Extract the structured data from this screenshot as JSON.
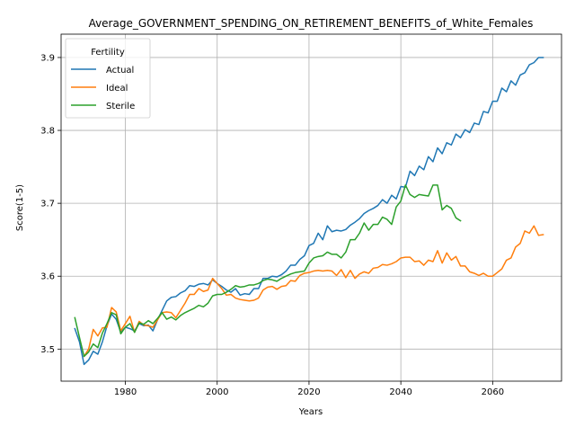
{
  "chart_data": {
    "type": "line",
    "title": "Average_GOVERNMENT_SPENDING_ON_RETIREMENT_BENEFITS_of_White_Females",
    "xlabel": "Years",
    "ylabel": "Score(1-5)",
    "xlim": [
      1966,
      2075
    ],
    "ylim": [
      3.456,
      3.932
    ],
    "x_ticks": [
      1980,
      2000,
      2020,
      2040,
      2060
    ],
    "y_ticks": [
      3.5,
      3.6,
      3.7,
      3.8,
      3.9
    ],
    "grid": true,
    "legend": {
      "title": "Fertility",
      "placement": "top-left"
    },
    "series": [
      {
        "name": "Actual",
        "color": "#1f77b4",
        "points": [
          [
            1969,
            3.528
          ],
          [
            1970,
            3.51
          ],
          [
            1971,
            3.479
          ],
          [
            1972,
            3.485
          ],
          [
            1973,
            3.497
          ],
          [
            1974,
            3.493
          ],
          [
            1975,
            3.51
          ],
          [
            1976,
            3.532
          ],
          [
            1977,
            3.548
          ],
          [
            1978,
            3.541
          ],
          [
            1979,
            3.523
          ],
          [
            1980,
            3.53
          ],
          [
            1981,
            3.528
          ],
          [
            1982,
            3.525
          ],
          [
            1983,
            3.535
          ],
          [
            1984,
            3.532
          ],
          [
            1985,
            3.533
          ],
          [
            1986,
            3.525
          ],
          [
            1987,
            3.54
          ],
          [
            1988,
            3.553
          ],
          [
            1989,
            3.566
          ],
          [
            1990,
            3.571
          ],
          [
            1991,
            3.572
          ],
          [
            1992,
            3.577
          ],
          [
            1993,
            3.58
          ],
          [
            1994,
            3.587
          ],
          [
            1995,
            3.586
          ],
          [
            1996,
            3.589
          ],
          [
            1997,
            3.59
          ],
          [
            1998,
            3.588
          ],
          [
            1999,
            3.595
          ],
          [
            2000,
            3.59
          ],
          [
            2001,
            3.586
          ],
          [
            2002,
            3.581
          ],
          [
            2003,
            3.578
          ],
          [
            2004,
            3.583
          ],
          [
            2005,
            3.574
          ],
          [
            2006,
            3.576
          ],
          [
            2007,
            3.575
          ],
          [
            2008,
            3.583
          ],
          [
            2009,
            3.583
          ],
          [
            2010,
            3.597
          ],
          [
            2011,
            3.597
          ],
          [
            2012,
            3.6
          ],
          [
            2013,
            3.599
          ],
          [
            2014,
            3.602
          ],
          [
            2015,
            3.607
          ],
          [
            2016,
            3.615
          ],
          [
            2017,
            3.615
          ],
          [
            2018,
            3.623
          ],
          [
            2019,
            3.628
          ],
          [
            2020,
            3.642
          ],
          [
            2021,
            3.645
          ],
          [
            2022,
            3.659
          ],
          [
            2023,
            3.65
          ],
          [
            2024,
            3.669
          ],
          [
            2025,
            3.661
          ],
          [
            2026,
            3.663
          ],
          [
            2027,
            3.662
          ],
          [
            2028,
            3.664
          ],
          [
            2029,
            3.67
          ],
          [
            2030,
            3.674
          ],
          [
            2031,
            3.679
          ],
          [
            2032,
            3.686
          ],
          [
            2033,
            3.69
          ],
          [
            2034,
            3.693
          ],
          [
            2035,
            3.697
          ],
          [
            2036,
            3.705
          ],
          [
            2037,
            3.7
          ],
          [
            2038,
            3.711
          ],
          [
            2039,
            3.706
          ],
          [
            2040,
            3.723
          ],
          [
            2041,
            3.722
          ],
          [
            2042,
            3.744
          ],
          [
            2043,
            3.738
          ],
          [
            2044,
            3.751
          ],
          [
            2045,
            3.746
          ],
          [
            2046,
            3.764
          ],
          [
            2047,
            3.757
          ],
          [
            2048,
            3.776
          ],
          [
            2049,
            3.768
          ],
          [
            2050,
            3.783
          ],
          [
            2051,
            3.78
          ],
          [
            2052,
            3.795
          ],
          [
            2053,
            3.79
          ],
          [
            2054,
            3.801
          ],
          [
            2055,
            3.797
          ],
          [
            2056,
            3.81
          ],
          [
            2057,
            3.808
          ],
          [
            2058,
            3.826
          ],
          [
            2059,
            3.824
          ],
          [
            2060,
            3.84
          ],
          [
            2061,
            3.84
          ],
          [
            2062,
            3.858
          ],
          [
            2063,
            3.853
          ],
          [
            2064,
            3.868
          ],
          [
            2065,
            3.862
          ],
          [
            2066,
            3.876
          ],
          [
            2067,
            3.879
          ],
          [
            2068,
            3.89
          ],
          [
            2069,
            3.893
          ],
          [
            2070,
            3.9
          ],
          [
            2071,
            3.9
          ]
        ]
      },
      {
        "name": "Ideal",
        "color": "#ff7f0e",
        "points": [
          [
            1971,
            3.49
          ],
          [
            1972,
            3.5
          ],
          [
            1973,
            3.527
          ],
          [
            1974,
            3.518
          ],
          [
            1975,
            3.529
          ],
          [
            1976,
            3.53
          ],
          [
            1977,
            3.557
          ],
          [
            1978,
            3.551
          ],
          [
            1979,
            3.525
          ],
          [
            1980,
            3.535
          ],
          [
            1981,
            3.545
          ],
          [
            1982,
            3.523
          ],
          [
            1983,
            3.538
          ],
          [
            1984,
            3.533
          ],
          [
            1985,
            3.532
          ],
          [
            1986,
            3.53
          ],
          [
            1987,
            3.54
          ],
          [
            1988,
            3.55
          ],
          [
            1989,
            3.551
          ],
          [
            1990,
            3.55
          ],
          [
            1991,
            3.543
          ],
          [
            1992,
            3.553
          ],
          [
            1993,
            3.563
          ],
          [
            1994,
            3.575
          ],
          [
            1995,
            3.575
          ],
          [
            1996,
            3.583
          ],
          [
            1997,
            3.579
          ],
          [
            1998,
            3.581
          ],
          [
            1999,
            3.597
          ],
          [
            2000,
            3.59
          ],
          [
            2001,
            3.583
          ],
          [
            2002,
            3.574
          ],
          [
            2003,
            3.575
          ],
          [
            2004,
            3.57
          ],
          [
            2005,
            3.568
          ],
          [
            2006,
            3.567
          ],
          [
            2007,
            3.566
          ],
          [
            2008,
            3.567
          ],
          [
            2009,
            3.57
          ],
          [
            2010,
            3.581
          ],
          [
            2011,
            3.585
          ],
          [
            2012,
            3.586
          ],
          [
            2013,
            3.582
          ],
          [
            2014,
            3.586
          ],
          [
            2015,
            3.587
          ],
          [
            2016,
            3.594
          ],
          [
            2017,
            3.593
          ],
          [
            2018,
            3.601
          ],
          [
            2019,
            3.604
          ],
          [
            2020,
            3.605
          ],
          [
            2021,
            3.607
          ],
          [
            2022,
            3.608
          ],
          [
            2023,
            3.607
          ],
          [
            2024,
            3.608
          ],
          [
            2025,
            3.607
          ],
          [
            2026,
            3.601
          ],
          [
            2027,
            3.609
          ],
          [
            2028,
            3.598
          ],
          [
            2029,
            3.608
          ],
          [
            2030,
            3.597
          ],
          [
            2031,
            3.603
          ],
          [
            2032,
            3.606
          ],
          [
            2033,
            3.604
          ],
          [
            2034,
            3.611
          ],
          [
            2035,
            3.612
          ],
          [
            2036,
            3.616
          ],
          [
            2037,
            3.615
          ],
          [
            2038,
            3.617
          ],
          [
            2039,
            3.62
          ],
          [
            2040,
            3.625
          ],
          [
            2041,
            3.626
          ],
          [
            2042,
            3.626
          ],
          [
            2043,
            3.62
          ],
          [
            2044,
            3.621
          ],
          [
            2045,
            3.615
          ],
          [
            2046,
            3.622
          ],
          [
            2047,
            3.62
          ],
          [
            2048,
            3.635
          ],
          [
            2049,
            3.618
          ],
          [
            2050,
            3.632
          ],
          [
            2051,
            3.622
          ],
          [
            2052,
            3.627
          ],
          [
            2053,
            3.614
          ],
          [
            2054,
            3.614
          ],
          [
            2055,
            3.606
          ],
          [
            2056,
            3.604
          ],
          [
            2057,
            3.601
          ],
          [
            2058,
            3.604
          ],
          [
            2059,
            3.6
          ],
          [
            2060,
            3.6
          ],
          [
            2061,
            3.605
          ],
          [
            2062,
            3.61
          ],
          [
            2063,
            3.622
          ],
          [
            2064,
            3.625
          ],
          [
            2065,
            3.64
          ],
          [
            2066,
            3.645
          ],
          [
            2067,
            3.662
          ],
          [
            2068,
            3.659
          ],
          [
            2069,
            3.669
          ],
          [
            2070,
            3.656
          ],
          [
            2071,
            3.657
          ]
        ]
      },
      {
        "name": "Sterile",
        "color": "#2ca02c",
        "points": [
          [
            1969,
            3.543
          ],
          [
            1970,
            3.516
          ],
          [
            1971,
            3.49
          ],
          [
            1972,
            3.496
          ],
          [
            1973,
            3.507
          ],
          [
            1974,
            3.502
          ],
          [
            1975,
            3.522
          ],
          [
            1976,
            3.535
          ],
          [
            1977,
            3.55
          ],
          [
            1978,
            3.547
          ],
          [
            1979,
            3.521
          ],
          [
            1980,
            3.53
          ],
          [
            1981,
            3.535
          ],
          [
            1982,
            3.523
          ],
          [
            1983,
            3.536
          ],
          [
            1984,
            3.534
          ],
          [
            1985,
            3.539
          ],
          [
            1986,
            3.535
          ],
          [
            1987,
            3.542
          ],
          [
            1988,
            3.55
          ],
          [
            1989,
            3.541
          ],
          [
            1990,
            3.544
          ],
          [
            1991,
            3.54
          ],
          [
            1992,
            3.546
          ],
          [
            1993,
            3.55
          ],
          [
            1994,
            3.553
          ],
          [
            1995,
            3.556
          ],
          [
            1996,
            3.56
          ],
          [
            1997,
            3.558
          ],
          [
            1998,
            3.563
          ],
          [
            1999,
            3.573
          ],
          [
            2000,
            3.575
          ],
          [
            2001,
            3.575
          ],
          [
            2002,
            3.578
          ],
          [
            2003,
            3.582
          ],
          [
            2004,
            3.587
          ],
          [
            2005,
            3.585
          ],
          [
            2006,
            3.586
          ],
          [
            2007,
            3.588
          ],
          [
            2008,
            3.588
          ],
          [
            2009,
            3.59
          ],
          [
            2010,
            3.594
          ],
          [
            2011,
            3.596
          ],
          [
            2012,
            3.595
          ],
          [
            2013,
            3.593
          ],
          [
            2014,
            3.597
          ],
          [
            2015,
            3.6
          ],
          [
            2016,
            3.603
          ],
          [
            2017,
            3.605
          ],
          [
            2018,
            3.606
          ],
          [
            2019,
            3.607
          ],
          [
            2020,
            3.618
          ],
          [
            2021,
            3.625
          ],
          [
            2022,
            3.627
          ],
          [
            2023,
            3.628
          ],
          [
            2024,
            3.633
          ],
          [
            2025,
            3.63
          ],
          [
            2026,
            3.63
          ],
          [
            2027,
            3.625
          ],
          [
            2028,
            3.633
          ],
          [
            2029,
            3.65
          ],
          [
            2030,
            3.65
          ],
          [
            2031,
            3.659
          ],
          [
            2032,
            3.673
          ],
          [
            2033,
            3.663
          ],
          [
            2034,
            3.671
          ],
          [
            2035,
            3.671
          ],
          [
            2036,
            3.681
          ],
          [
            2037,
            3.678
          ],
          [
            2038,
            3.671
          ],
          [
            2039,
            3.695
          ],
          [
            2040,
            3.703
          ],
          [
            2041,
            3.725
          ],
          [
            2042,
            3.712
          ],
          [
            2043,
            3.708
          ],
          [
            2044,
            3.712
          ],
          [
            2045,
            3.711
          ],
          [
            2046,
            3.71
          ],
          [
            2047,
            3.725
          ],
          [
            2048,
            3.725
          ],
          [
            2049,
            3.691
          ],
          [
            2050,
            3.697
          ],
          [
            2051,
            3.693
          ],
          [
            2052,
            3.68
          ],
          [
            2053,
            3.676
          ]
        ]
      }
    ]
  }
}
